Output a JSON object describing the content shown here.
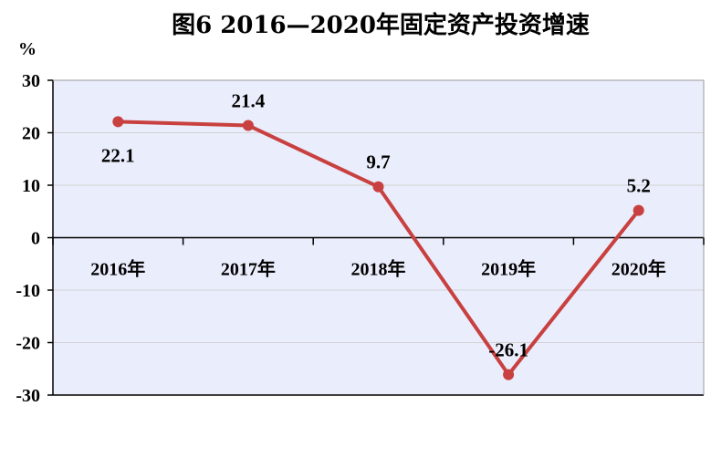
{
  "chart_data": {
    "type": "line",
    "title": "图6  2016—2020年固定资产投资增速",
    "ylabel": "%",
    "xlabel": "",
    "categories": [
      "2016年",
      "2017年",
      "2018年",
      "2019年",
      "2020年"
    ],
    "series": [
      {
        "values": [
          22.1,
          21.4,
          9.7,
          -26.1,
          5.2
        ],
        "color": "#c8403f"
      }
    ],
    "data_labels": [
      "22.1",
      "21.4",
      "9.7",
      "-26.1",
      "5.2"
    ],
    "ylim": [
      -30,
      30
    ],
    "yticks": [
      30,
      20,
      10,
      0,
      -10,
      -20,
      -30
    ],
    "grid": true,
    "plot_background": "#eaedfb",
    "gridline_color": "#d3d3d3",
    "legend": "none"
  }
}
